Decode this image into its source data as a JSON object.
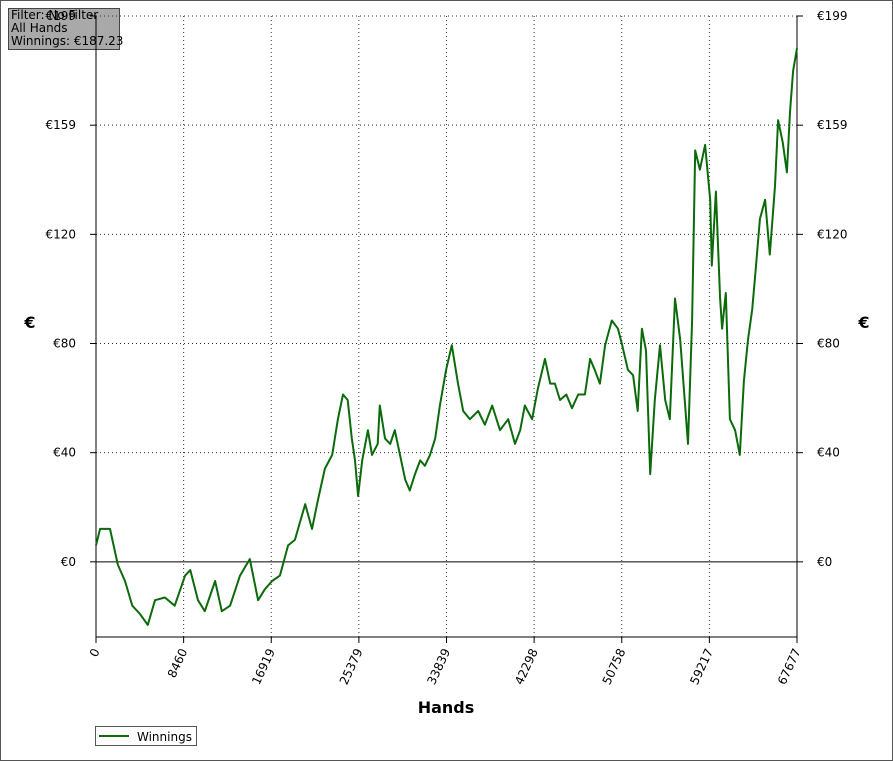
{
  "chart_data": {
    "type": "line",
    "annotations": [
      "Filter: No Filter",
      "All Hands",
      "Winnings: €187.23"
    ],
    "xlabel": "Hands",
    "ylabel": "€",
    "xlim": [
      0,
      67677
    ],
    "xticks": [
      0,
      8460,
      16919,
      25379,
      33839,
      42298,
      50758,
      59217,
      67677
    ],
    "ylim": [
      -27.4,
      199
    ],
    "yticks": [
      {
        "value": 0,
        "label": "€0"
      },
      {
        "value": 39.8,
        "label": "€40"
      },
      {
        "value": 79.6,
        "label": "€80"
      },
      {
        "value": 119.4,
        "label": "€120"
      },
      {
        "value": 159.2,
        "label": "€159"
      },
      {
        "value": 199,
        "label": "€199"
      }
    ],
    "grid": true,
    "legend": "bottom-left",
    "x": [
      0,
      400,
      1350,
      2100,
      2800,
      3500,
      4250,
      5000,
      5700,
      6650,
      7600,
      8600,
      9100,
      9850,
      10500,
      11500,
      12150,
      12950,
      13900,
      14850,
      15650,
      16300,
      17000,
      17750,
      18550,
      19200,
      20200,
      20850,
      21450,
      22100,
      22800,
      23350,
      23850,
      24300,
      24700,
      25000,
      25300,
      25700,
      26250,
      26650,
      27200,
      27400,
      27900,
      28400,
      28850,
      29350,
      29850,
      30300,
      30800,
      31300,
      31750,
      32250,
      32750,
      33200,
      33800,
      34350,
      34950,
      35450,
      36100,
      36900,
      37550,
      38250,
      39000,
      39800,
      40450,
      40950,
      41400,
      42100,
      42650,
      43350,
      43850,
      44300,
      44800,
      45400,
      45950,
      46550,
      47200,
      47700,
      48150,
      48650,
      49150,
      49800,
      50400,
      50800,
      51350,
      51850,
      52300,
      52700,
      53100,
      53500,
      53950,
      54450,
      54950,
      55400,
      55900,
      56400,
      57150,
      57550,
      57850,
      58300,
      58800,
      59300,
      59450,
      59850,
      60250,
      60450,
      60800,
      61200,
      61700,
      62150,
      62550,
      62950,
      63350,
      63700,
      64100,
      64600,
      65050,
      65550,
      65850,
      66300,
      66700,
      67000,
      67300,
      67677
    ],
    "series": [
      {
        "name": "Winnings",
        "color": "#0b6b0b",
        "values": [
          6,
          12,
          12,
          -1,
          -7,
          -16,
          -19,
          -23,
          -14,
          -13,
          -16,
          -5,
          -3,
          -14,
          -18,
          -7,
          -18,
          -16,
          -5,
          1,
          -14,
          -10,
          -7,
          -5,
          6,
          8,
          21,
          12,
          23,
          34,
          39,
          52,
          61,
          59,
          45,
          37,
          24,
          37,
          48,
          39,
          43,
          57,
          45,
          43,
          48,
          39,
          30,
          26,
          32,
          37,
          35,
          39,
          45,
          57,
          70,
          79,
          65,
          55,
          52,
          55,
          50,
          57,
          48,
          52,
          43,
          48,
          57,
          52,
          63,
          74,
          65,
          65,
          59,
          61,
          56,
          61,
          61,
          74,
          70,
          65,
          79,
          88,
          85,
          79,
          70,
          68,
          55,
          85,
          77,
          32,
          59,
          79,
          59,
          52,
          96,
          81,
          43,
          88,
          150,
          143,
          152,
          132,
          108,
          135,
          96,
          85,
          98,
          52,
          48,
          39,
          66,
          81,
          92,
          107,
          125,
          132,
          112,
          137,
          161,
          153,
          142,
          164,
          179,
          187.23
        ]
      }
    ]
  }
}
